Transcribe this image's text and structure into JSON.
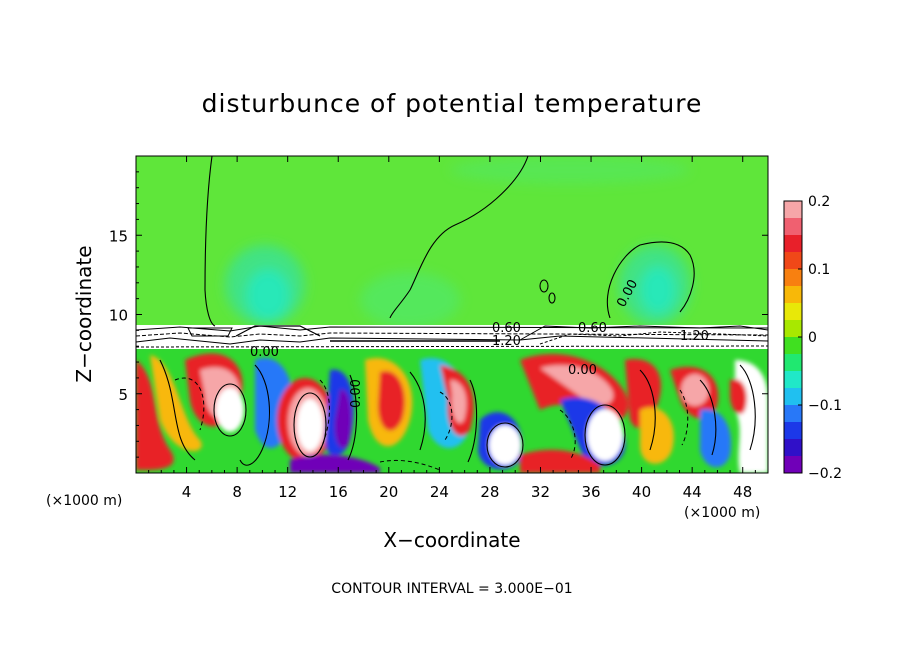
{
  "chart_data": {
    "type": "heatmap",
    "title": "disturbunce of potential temperature",
    "xlabel": "X−coordinate",
    "ylabel": "Z−coordinate",
    "x_unit_left": "(×1000 m)",
    "x_unit_right": "(×1000 m)",
    "xlim": [
      0,
      50
    ],
    "ylim": [
      0,
      20
    ],
    "x_ticks": [
      4,
      8,
      12,
      16,
      20,
      24,
      28,
      32,
      36,
      40,
      44,
      48
    ],
    "x_tick_labels": [
      "4",
      "8",
      "12",
      "16",
      "20",
      "24",
      "28",
      "32",
      "36",
      "40",
      "44",
      "48"
    ],
    "y_ticks": [
      5,
      10,
      15
    ],
    "y_tick_labels": [
      "5",
      "10",
      "15"
    ],
    "colorbar": {
      "range": [
        -0.2,
        0.2
      ],
      "ticks": [
        0.2,
        0.1,
        0,
        -0.1,
        -0.2
      ],
      "tick_labels": [
        "0.2",
        "0.1",
        "0",
        "−0.1",
        "−0.2"
      ],
      "colors": [
        "#f6a6a8",
        "#f06070",
        "#e8202a",
        "#f04818",
        "#f88010",
        "#f8b808",
        "#e8e808",
        "#a8e800",
        "#40e020",
        "#20e870",
        "#20e8c8",
        "#20c0f0",
        "#2878f8",
        "#1c38e8",
        "#3010c8",
        "#7000b8"
      ]
    },
    "contour_labels": [
      {
        "text": "0.00",
        "x": 9.0,
        "z": 7.9
      },
      {
        "text": "0.60",
        "x": 28.5,
        "z": 9.2
      },
      {
        "text": "1.20",
        "x": 28.7,
        "z": 8.4
      },
      {
        "text": "0.60",
        "x": 36.3,
        "z": 9.1
      },
      {
        "text": "1.20",
        "x": 45.5,
        "z": 8.7
      },
      {
        "text": "0.00",
        "x": 35.5,
        "z": 6.5
      },
      {
        "text": "0.00",
        "x": 38.0,
        "z": 11.1
      },
      {
        "text": "0.00",
        "x": 17.0,
        "z": 5.2
      }
    ],
    "annotation": "CONTOUR INTERVAL = 3.000E−01"
  }
}
